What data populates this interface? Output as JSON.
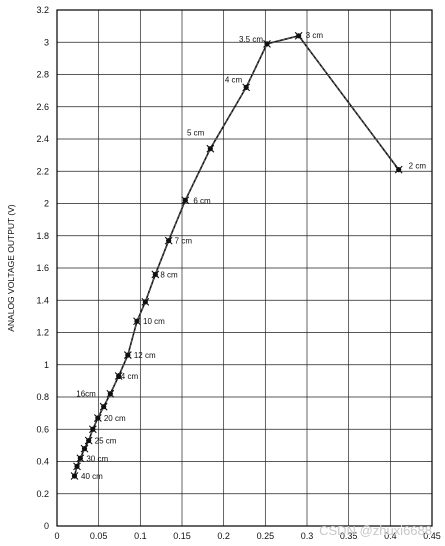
{
  "chart_data": {
    "type": "line",
    "title": "",
    "xlabel": "",
    "ylabel": "ANALOG VOLTAGE OUTPUT (V)",
    "xlim": [
      0,
      0.45
    ],
    "ylim": [
      0,
      3.2
    ],
    "x_ticks": [
      "0",
      "0.05",
      "0.1",
      "0.15",
      "0.2",
      "0.25",
      "0.3",
      "0.35",
      "0.4",
      "0.45"
    ],
    "y_ticks": [
      "0",
      "0.2",
      "0.4",
      "0.6",
      "0.8",
      "1",
      "1.2",
      "1.4",
      "1.6",
      "1.8",
      "2",
      "2.2",
      "2.4",
      "2.6",
      "2.8",
      "3",
      "3.2"
    ],
    "grid": true,
    "series": [
      {
        "name": "",
        "x": [
          0.021,
          0.024,
          0.028,
          0.033,
          0.038,
          0.043,
          0.049,
          0.056,
          0.064,
          0.074,
          0.085,
          0.096,
          0.106,
          0.118,
          0.134,
          0.154,
          0.184,
          0.227,
          0.252,
          0.29,
          0.41
        ],
        "y": [
          0.31,
          0.37,
          0.42,
          0.48,
          0.53,
          0.6,
          0.67,
          0.74,
          0.82,
          0.93,
          1.06,
          1.27,
          1.39,
          1.56,
          1.77,
          2.02,
          2.34,
          2.72,
          2.99,
          3.04,
          2.21
        ]
      }
    ],
    "annotations": [
      {
        "text": "40 cm",
        "x": 0.024,
        "y": 0.31
      },
      {
        "text": "30 cm",
        "x": 0.028,
        "y": 0.42
      },
      {
        "text": "25 cm",
        "x": 0.038,
        "y": 0.53
      },
      {
        "text": "20 cm",
        "x": 0.049,
        "y": 0.67
      },
      {
        "text": "16cm",
        "x": 0.049,
        "y": 0.74
      },
      {
        "text": "14 cm",
        "x": 0.064,
        "y": 0.93
      },
      {
        "text": "12 cm",
        "x": 0.085,
        "y": 1.06
      },
      {
        "text": "10 cm",
        "x": 0.096,
        "y": 1.27
      },
      {
        "text": "8 cm",
        "x": 0.118,
        "y": 1.56
      },
      {
        "text": "7 cm",
        "x": 0.134,
        "y": 1.77
      },
      {
        "text": "6 cm",
        "x": 0.154,
        "y": 2.02
      },
      {
        "text": "5 cm",
        "x": 0.184,
        "y": 2.34
      },
      {
        "text": "4 cm",
        "x": 0.227,
        "y": 2.72
      },
      {
        "text": "3.5 cm",
        "x": 0.252,
        "y": 2.99
      },
      {
        "text": "3 cm",
        "x": 0.29,
        "y": 3.04
      },
      {
        "text": "2 cm",
        "x": 0.41,
        "y": 2.21
      }
    ]
  },
  "watermark": "CSDN @zhuxi6688",
  "colors": {
    "line": "#111111",
    "grid": "#222222",
    "background": "#ffffff"
  }
}
